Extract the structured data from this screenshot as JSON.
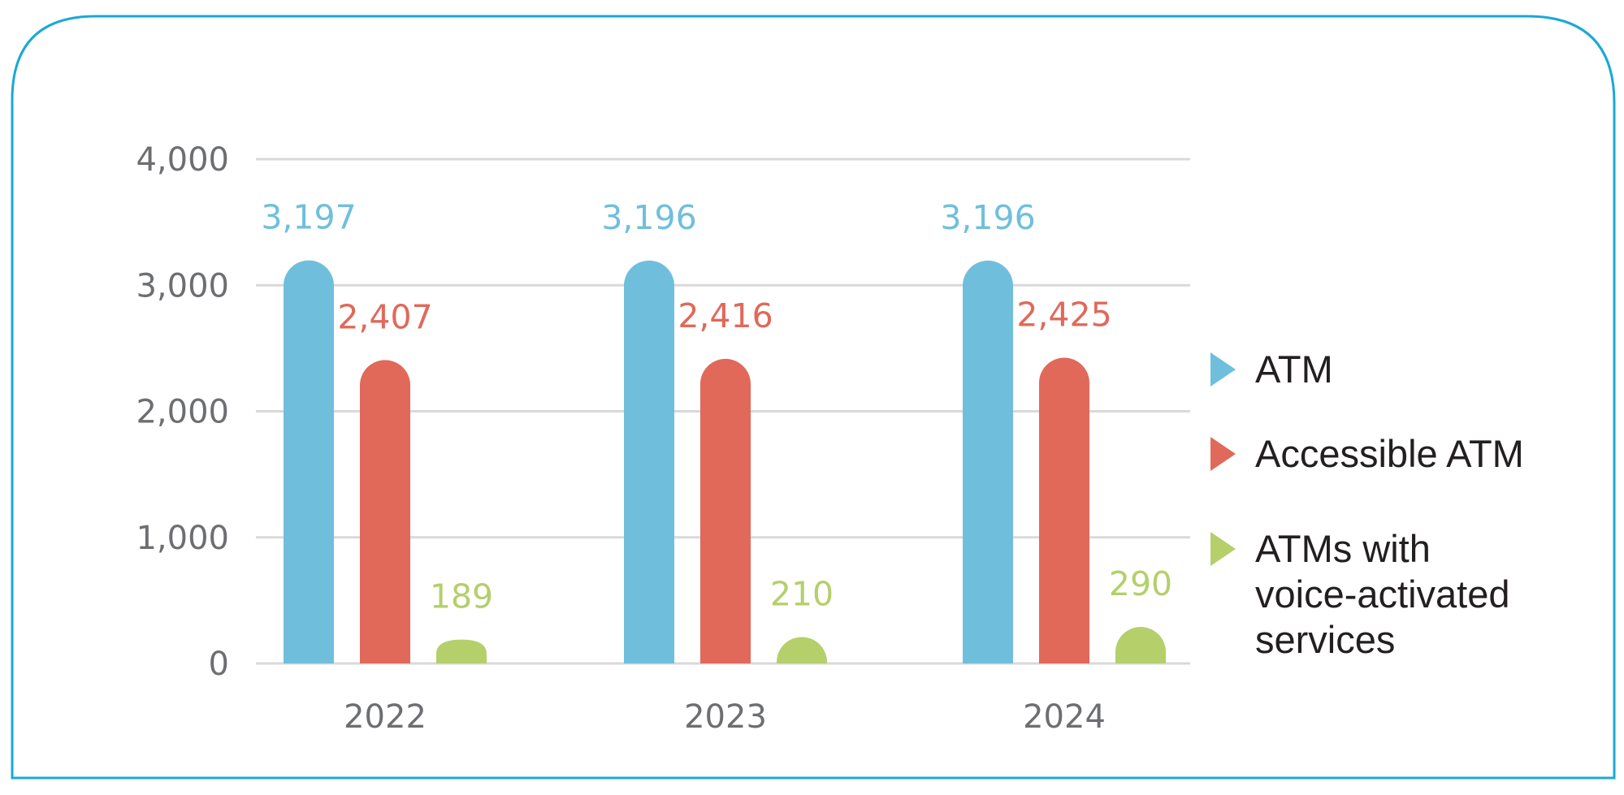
{
  "chart_data": {
    "type": "bar",
    "categories": [
      "2022",
      "2023",
      "2024"
    ],
    "series": [
      {
        "name": "ATM",
        "values": [
          3197,
          3196,
          3196
        ],
        "labels": [
          "3,197",
          "3,196",
          "3,196"
        ],
        "color": "#6fbfdc"
      },
      {
        "name": "Accessible ATM",
        "values": [
          2407,
          2416,
          2425
        ],
        "labels": [
          "2,407",
          "2,416",
          "2,425"
        ],
        "color": "#e0695a"
      },
      {
        "name": "ATMs with voice-activated services",
        "legend_lines": [
          "ATMs with",
          "voice-activated",
          "services"
        ],
        "values": [
          189,
          210,
          290
        ],
        "labels": [
          "189",
          "210",
          "290"
        ],
        "color": "#b5cf6b"
      }
    ],
    "y_ticks": [
      0,
      1000,
      2000,
      3000,
      4000
    ],
    "y_tick_labels": [
      "0",
      "1,000",
      "2,000",
      "3,000",
      "4,000"
    ],
    "ylim": [
      0,
      4000
    ],
    "grid": true,
    "legend_position": "right",
    "title": "",
    "xlabel": "",
    "ylabel": ""
  },
  "colors": {
    "frame": "#1aa9d6",
    "grid": "#d9d9db",
    "axis_text": "#6d6e71",
    "legend_text": "#231f20"
  }
}
